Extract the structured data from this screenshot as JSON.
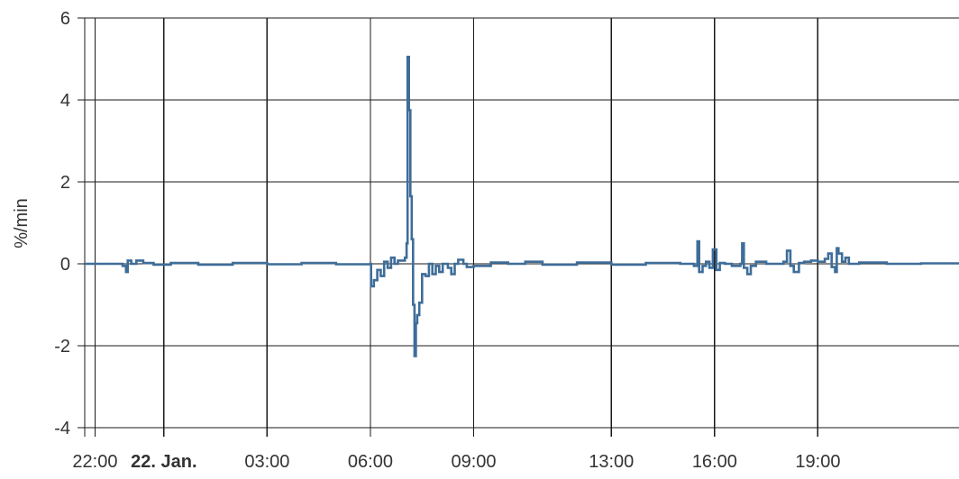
{
  "chart_data": {
    "type": "line",
    "ylabel": "%/min",
    "ylim": [
      -4,
      6
    ],
    "yticks": [
      "-4",
      "-2",
      "0",
      "2",
      "4",
      "6"
    ],
    "xlim_hours": [
      -2.3,
      23.1
    ],
    "xticks": [
      {
        "h": -2.0,
        "label": "22:00",
        "bold": false
      },
      {
        "h": 0.0,
        "label": "22. Jan.",
        "bold": true
      },
      {
        "h": 3.0,
        "label": "03:00",
        "bold": false
      },
      {
        "h": 6.0,
        "label": "06:00",
        "bold": false
      },
      {
        "h": 9.0,
        "label": "09:00",
        "bold": false
      },
      {
        "h": 13.0,
        "label": "13:00",
        "bold": false
      },
      {
        "h": 16.0,
        "label": "16:00",
        "bold": false
      },
      {
        "h": 19.0,
        "label": "19:00",
        "bold": false
      }
    ],
    "grid": true,
    "series": [
      {
        "color": "#3e6d99",
        "step": true,
        "points": [
          [
            -2.3,
            0.0
          ],
          [
            -1.2,
            -0.05
          ],
          [
            -1.1,
            -0.2
          ],
          [
            -1.05,
            0.08
          ],
          [
            -0.95,
            0.0
          ],
          [
            -0.8,
            0.08
          ],
          [
            -0.6,
            0.02
          ],
          [
            -0.3,
            -0.02
          ],
          [
            0.2,
            0.02
          ],
          [
            1.0,
            -0.02
          ],
          [
            2.0,
            0.02
          ],
          [
            3.0,
            -0.01
          ],
          [
            4.0,
            0.02
          ],
          [
            5.0,
            -0.01
          ],
          [
            6.0,
            0.0
          ],
          [
            6.02,
            -0.55
          ],
          [
            6.1,
            -0.4
          ],
          [
            6.2,
            -0.15
          ],
          [
            6.3,
            -0.3
          ],
          [
            6.4,
            0.05
          ],
          [
            6.5,
            -0.1
          ],
          [
            6.6,
            0.15
          ],
          [
            6.7,
            0.0
          ],
          [
            6.8,
            0.08
          ],
          [
            7.0,
            0.15
          ],
          [
            7.05,
            0.5
          ],
          [
            7.08,
            5.05
          ],
          [
            7.12,
            3.75
          ],
          [
            7.16,
            1.65
          ],
          [
            7.2,
            0.6
          ],
          [
            7.24,
            -1.0
          ],
          [
            7.28,
            -2.25
          ],
          [
            7.32,
            -1.45
          ],
          [
            7.36,
            -1.25
          ],
          [
            7.42,
            -0.95
          ],
          [
            7.5,
            -0.25
          ],
          [
            7.6,
            -0.3
          ],
          [
            7.7,
            0.0
          ],
          [
            7.8,
            -0.25
          ],
          [
            7.9,
            -0.05
          ],
          [
            8.0,
            -0.2
          ],
          [
            8.1,
            0.0
          ],
          [
            8.25,
            -0.1
          ],
          [
            8.35,
            -0.25
          ],
          [
            8.45,
            0.0
          ],
          [
            8.55,
            0.1
          ],
          [
            8.7,
            0.0
          ],
          [
            8.8,
            -0.08
          ],
          [
            9.0,
            -0.05
          ],
          [
            9.5,
            0.03
          ],
          [
            10.0,
            0.0
          ],
          [
            10.5,
            0.05
          ],
          [
            11.0,
            -0.02
          ],
          [
            12.0,
            0.03
          ],
          [
            13.0,
            -0.02
          ],
          [
            14.0,
            0.02
          ],
          [
            15.0,
            0.0
          ],
          [
            15.4,
            -0.05
          ],
          [
            15.5,
            0.55
          ],
          [
            15.55,
            -0.2
          ],
          [
            15.65,
            -0.05
          ],
          [
            15.75,
            0.05
          ],
          [
            15.85,
            -0.1
          ],
          [
            15.95,
            0.35
          ],
          [
            16.05,
            -0.15
          ],
          [
            16.15,
            0.02
          ],
          [
            16.3,
            0.0
          ],
          [
            16.5,
            -0.05
          ],
          [
            16.75,
            0.0
          ],
          [
            16.8,
            0.5
          ],
          [
            16.85,
            -0.1
          ],
          [
            16.95,
            -0.25
          ],
          [
            17.05,
            -0.05
          ],
          [
            17.2,
            0.05
          ],
          [
            17.5,
            0.0
          ],
          [
            18.0,
            0.05
          ],
          [
            18.1,
            0.32
          ],
          [
            18.2,
            -0.05
          ],
          [
            18.3,
            -0.2
          ],
          [
            18.45,
            0.02
          ],
          [
            18.6,
            0.05
          ],
          [
            18.8,
            0.08
          ],
          [
            19.0,
            0.05
          ],
          [
            19.2,
            0.12
          ],
          [
            19.3,
            0.25
          ],
          [
            19.4,
            -0.08
          ],
          [
            19.5,
            -0.2
          ],
          [
            19.55,
            0.38
          ],
          [
            19.6,
            0.25
          ],
          [
            19.7,
            0.05
          ],
          [
            19.8,
            0.15
          ],
          [
            19.9,
            0.0
          ],
          [
            20.2,
            0.03
          ],
          [
            21.0,
            0.0
          ],
          [
            22.0,
            0.01
          ],
          [
            23.1,
            0.0
          ]
        ]
      }
    ]
  }
}
